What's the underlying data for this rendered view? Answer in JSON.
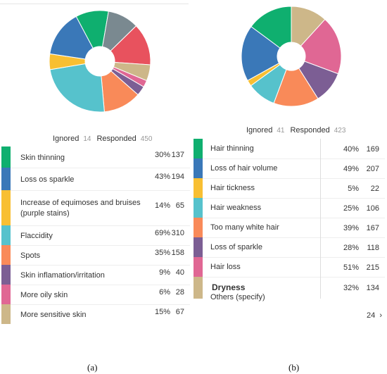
{
  "chart_data": [
    {
      "type": "pie",
      "caption": "(a)",
      "ignored_label": "Ignored",
      "ignored_value": "14",
      "responded_label": "Responded",
      "responded_value": "450",
      "rows": [
        {
          "label": "Skin thinning",
          "pct": "30%",
          "count": "137",
          "color": "#0faf6f"
        },
        {
          "label": "Loss os sparkle",
          "pct": "43%",
          "count": "194",
          "color": "#3a78b8"
        },
        {
          "label": "Increase of equimoses and bruises (purple stains)",
          "pct": "14%",
          "count": "65",
          "color": "#f8bf32"
        },
        {
          "label": "Flaccidity",
          "pct": "69%",
          "count": "310",
          "color": "#56c2cc"
        },
        {
          "label": "Spots",
          "pct": "35%",
          "count": "158",
          "color": "#f98a59"
        },
        {
          "label": "Skin inflamation/irritation",
          "pct": "9%",
          "count": "40",
          "color": "#7c5e94"
        },
        {
          "label": "More oily skin",
          "pct": "6%",
          "count": "28",
          "color": "#e06794"
        },
        {
          "label": "More sensitive skin",
          "pct": "15%",
          "count": "67",
          "color": "#cdb789"
        }
      ],
      "extra_slices": [
        {
          "color": "#7a8990",
          "count": 130
        },
        {
          "color": "#e8525e",
          "count": 175
        }
      ]
    },
    {
      "type": "pie",
      "caption": "(b)",
      "ignored_label": "Ignored",
      "ignored_value": "41",
      "responded_label": "Responded",
      "responded_value": "423",
      "rows": [
        {
          "label": "Hair thinning",
          "pct": "40%",
          "count": "169",
          "color": "#0faf6f"
        },
        {
          "label": "Loss of hair volume",
          "pct": "49%",
          "count": "207",
          "color": "#3a78b8"
        },
        {
          "label": "Hair tickness",
          "pct": "5%",
          "count": "22",
          "color": "#f8bf32"
        },
        {
          "label": "Hair weakness",
          "pct": "25%",
          "count": "106",
          "color": "#56c2cc"
        },
        {
          "label": "Too many white hair",
          "pct": "39%",
          "count": "167",
          "color": "#f98a59"
        },
        {
          "label": "Loss of sparkle",
          "pct": "28%",
          "count": "118",
          "color": "#7c5e94"
        },
        {
          "label": "Hair loss",
          "pct": "51%",
          "count": "215",
          "color": "#e06794"
        },
        {
          "label": "Others (specify)",
          "pct": "32%",
          "count": "134",
          "color": "#cdb789"
        }
      ],
      "overlay_label": "Dryness",
      "pager": "24"
    }
  ]
}
